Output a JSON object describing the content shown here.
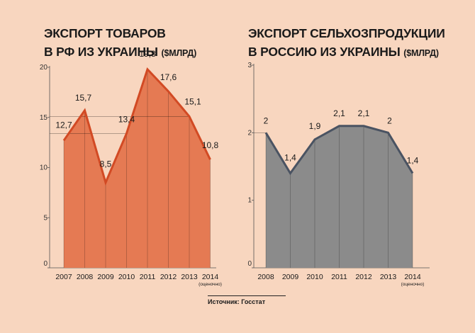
{
  "chart_data": [
    {
      "type": "area",
      "title_lines": [
        "ЭКСПОРТ ТОВАРОВ",
        "В РФ ИЗ УКРАИНЫ"
      ],
      "title_unit": "($МЛРД)",
      "categories": [
        "2007",
        "2008",
        "2009",
        "2010",
        "2011",
        "2012",
        "2013",
        "2014"
      ],
      "category_note": "(оценочно)",
      "values": [
        12.7,
        15.7,
        8.5,
        13.4,
        19.8,
        17.6,
        15.1,
        10.8
      ],
      "data_labels": [
        "12,7",
        "15,7",
        "8,5",
        "13,4",
        "19,8",
        "17,6",
        "15,1",
        "10,8"
      ],
      "yticks": [
        "0",
        "5",
        "10",
        "15",
        "20"
      ],
      "ylim": [
        0,
        20
      ],
      "grid": false,
      "fill_color": "#e57a53",
      "line_color": "#d24a24"
    },
    {
      "type": "area",
      "title_lines": [
        "ЭКСПОРТ СЕЛЬХОЗПРОДУКЦИИ",
        "В РОССИЮ ИЗ УКРАИНЫ"
      ],
      "title_unit": "($МЛРД)",
      "categories": [
        "2008",
        "2009",
        "2010",
        "2011",
        "2012",
        "2013",
        "2014"
      ],
      "category_note": "(оценочно)",
      "values": [
        2,
        1.4,
        1.9,
        2.1,
        2.1,
        2,
        1.4
      ],
      "data_labels": [
        "2",
        "1,4",
        "1,9",
        "2,1",
        "2,1",
        "2",
        "1,4"
      ],
      "yticks": [
        "0",
        "1",
        "2",
        "3"
      ],
      "ylim": [
        0,
        3
      ],
      "grid": false,
      "fill_color": "#8b8b8b",
      "line_color": "#4a5362"
    }
  ],
  "source": "Источник: Госстат"
}
